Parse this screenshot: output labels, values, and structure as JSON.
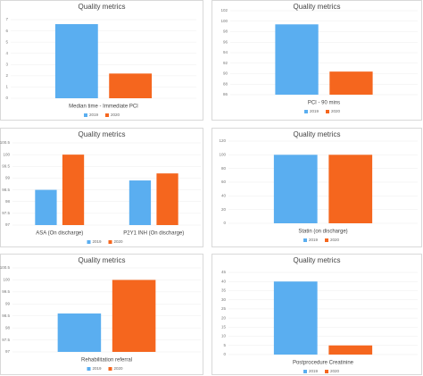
{
  "chart_data": [
    {
      "type": "bar",
      "title": "Quality metrics",
      "categories": [
        "Median time - Immediate PCI"
      ],
      "series": [
        {
          "name": "2019",
          "color": "#5aaef0",
          "values": [
            6.6
          ]
        },
        {
          "name": "2020",
          "color": "#f5661e",
          "values": [
            2.2
          ]
        }
      ],
      "ylim": [
        0,
        7
      ],
      "yticks": [
        0,
        1,
        2,
        3,
        4,
        5,
        6,
        7
      ],
      "grid": true
    },
    {
      "type": "bar",
      "title": "Quality metrics",
      "categories": [
        "PCI - 90 mins"
      ],
      "series": [
        {
          "name": "2019",
          "color": "#5aaef0",
          "values": [
            99.4
          ]
        },
        {
          "name": "2020",
          "color": "#f5661e",
          "values": [
            90.4
          ]
        }
      ],
      "ylim": [
        86,
        102
      ],
      "yticks": [
        86,
        88,
        90,
        92,
        94,
        96,
        98,
        100,
        102
      ],
      "grid": true
    },
    {
      "type": "bar",
      "title": "Quality metrics",
      "categories": [
        "ASA (On discharge)",
        "P2Y1 INH (On discharge)"
      ],
      "series": [
        {
          "name": "2019",
          "color": "#5aaef0",
          "values": [
            98.5,
            98.9
          ]
        },
        {
          "name": "2020",
          "color": "#f5661e",
          "values": [
            100,
            99.2
          ]
        }
      ],
      "ylim": [
        97,
        100.5
      ],
      "yticks": [
        97,
        97.5,
        98,
        98.5,
        99,
        99.5,
        100,
        100.5
      ],
      "grid": true
    },
    {
      "type": "bar",
      "title": "Quality metrics",
      "categories": [
        "Statin (on discharge)"
      ],
      "series": [
        {
          "name": "2019",
          "color": "#5aaef0",
          "values": [
            100
          ]
        },
        {
          "name": "2020",
          "color": "#f5661e",
          "values": [
            100
          ]
        }
      ],
      "ylim": [
        0,
        120
      ],
      "yticks": [
        0,
        20,
        40,
        60,
        80,
        100,
        120
      ],
      "grid": true
    },
    {
      "type": "bar",
      "title": "Quality metrics",
      "categories": [
        "Rehabilitation referral"
      ],
      "series": [
        {
          "name": "2019",
          "color": "#5aaef0",
          "values": [
            98.6
          ]
        },
        {
          "name": "2020",
          "color": "#f5661e",
          "values": [
            100
          ]
        }
      ],
      "ylim": [
        97,
        100.5
      ],
      "yticks": [
        97,
        97.5,
        98,
        98.5,
        99,
        99.5,
        100,
        100.5
      ],
      "grid": true
    },
    {
      "type": "bar",
      "title": "Quality metrics",
      "categories": [
        "Postprocedure Creatinine"
      ],
      "series": [
        {
          "name": "2019",
          "color": "#5aaef0",
          "values": [
            40
          ]
        },
        {
          "name": "2020",
          "color": "#f5661e",
          "values": [
            5
          ]
        }
      ],
      "ylim": [
        0,
        45
      ],
      "yticks": [
        0,
        5,
        10,
        15,
        20,
        25,
        30,
        35,
        40,
        45
      ],
      "grid": true
    }
  ]
}
